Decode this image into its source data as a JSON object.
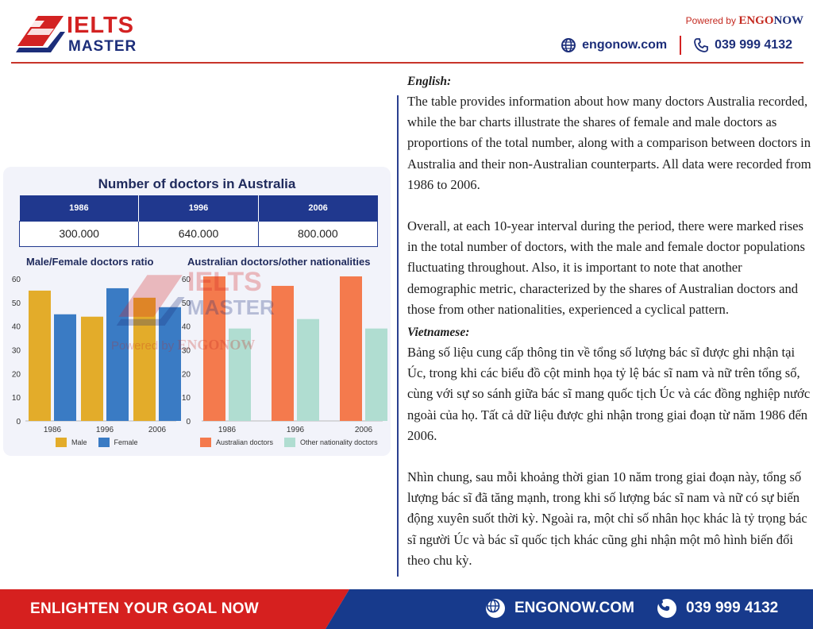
{
  "header": {
    "logo_ielts": "IELTS",
    "logo_master": "MASTER",
    "powered_prefix": "Powered by",
    "powered_brand_a": "ENGO",
    "powered_brand_b": "NOW",
    "website": "engonow.com",
    "phone": "039 999 4132",
    "colors": {
      "red": "#d32222",
      "navy": "#1c2e7a"
    }
  },
  "figure": {
    "title": "Number of doctors in Australia",
    "table": {
      "headers": [
        "1986",
        "1996",
        "2006"
      ],
      "values": [
        "300.000",
        "640.000",
        "800.000"
      ]
    },
    "watermark": {
      "ielts": "IELTS",
      "master": "MASTER",
      "powered_prefix": "Powered by",
      "powered_brand": "ENGONOW"
    }
  },
  "chart_data": [
    {
      "type": "bar",
      "title": "Male/Female doctors ratio",
      "categories": [
        "1986",
        "1996",
        "2006"
      ],
      "ylim": [
        0,
        60
      ],
      "yticks": [
        "0",
        "10",
        "20",
        "30",
        "40",
        "50",
        "60"
      ],
      "series": [
        {
          "name": "Male",
          "color": "#e3ac2a",
          "values": [
            55,
            44,
            52
          ]
        },
        {
          "name": "Female",
          "color": "#3a7bc4",
          "values": [
            45,
            56,
            48
          ]
        }
      ],
      "legend": "bottom",
      "grid": false
    },
    {
      "type": "bar",
      "title": "Australian doctors/other nationalities",
      "categories": [
        "1986",
        "1996",
        "2006"
      ],
      "ylim": [
        0,
        60
      ],
      "yticks": [
        "0",
        "10",
        "20",
        "30",
        "40",
        "50",
        "60"
      ],
      "series": [
        {
          "name": "Australian doctors",
          "color": "#f47a4d",
          "values": [
            61,
            57,
            61
          ]
        },
        {
          "name": "Other nationality doctors",
          "color": "#b0ddd1",
          "values": [
            39,
            43,
            39
          ]
        }
      ],
      "legend": "bottom",
      "grid": false
    }
  ],
  "content": {
    "english_heading": "English:",
    "english_p1": "The table provides information about how many doctors Australia recorded, while the bar charts illustrate the shares of female and male doctors as proportions of the total number, along with a comparison between doctors in Australia and their non-Australian counterparts. All data were recorded from 1986 to 2006.",
    "english_p2": "Overall, at each 10-year interval during the period, there were marked rises in the total number of doctors, with the male and female doctor populations fluctuating throughout. Also, it is important to note that another demographic metric, characterized by the shares of Australian doctors and those from other nationalities, experienced a cyclical pattern.",
    "vietnamese_heading": "Vietnamese:",
    "vietnamese_p1": "Bảng số liệu cung cấp thông tin về tổng số lượng bác sĩ được ghi nhận tại Úc, trong khi các biểu đồ cột minh họa tỷ lệ bác sĩ nam và nữ trên tổng số, cùng với sự so sánh giữa bác sĩ mang quốc tịch Úc và các đồng nghiệp nước ngoài của họ. Tất cả dữ liệu được ghi nhận trong giai đoạn từ năm 1986 đến 2006.",
    "vietnamese_p2": "Nhìn chung, sau mỗi khoảng thời gian 10 năm trong giai đoạn này, tổng số lượng bác sĩ đã tăng mạnh, trong khi số lượng bác sĩ nam và nữ có sự biến động xuyên suốt thời kỳ. Ngoài ra, một chỉ số nhân học khác là tỷ trọng bác sĩ người Úc và bác sĩ quốc tịch khác cũng ghi nhận một mô hình biến đổi theo chu kỳ."
  },
  "footer": {
    "slogan": "ENLIGHTEN YOUR GOAL NOW",
    "website": "ENGONOW.COM",
    "phone": "039 999 4132",
    "colors": {
      "red": "#d6201f",
      "navy": "#173a8c"
    }
  }
}
